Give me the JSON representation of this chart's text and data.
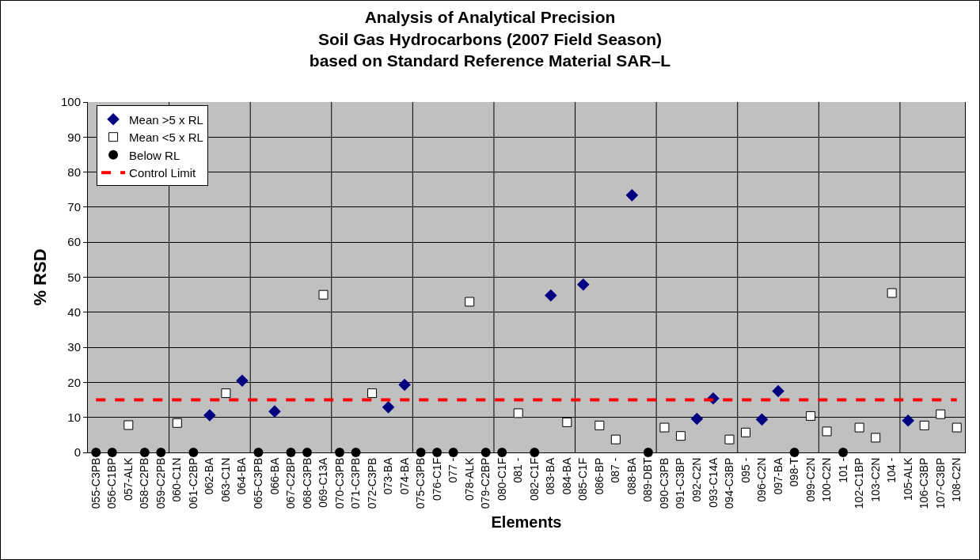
{
  "chart_data": {
    "type": "scatter",
    "title": "Analysis of Analytical Precision\nSoil Gas Hydrocarbons (2007 Field Season)\nbased on Standard Reference Material SAR–L",
    "xlabel": "Elements",
    "ylabel": "% RSD",
    "categories": [
      "055-C3PB",
      "056-C1BP",
      "057-ALK",
      "058-C2PB",
      "059-C2PB",
      "060-C1N",
      "061-C2BP",
      "062-BA",
      "063-C1N",
      "064-BA",
      "065-C3PB",
      "066-BA",
      "067-C2BP",
      "068-C3PB",
      "069-C13A",
      "070-C3PB",
      "071-C3PB",
      "072-C3PB",
      "073-BA",
      "074-BA",
      "075-C3PB",
      "076-C1F",
      "077 -",
      "078-ALK",
      "079-C2BP",
      "080-C1F",
      "081 -",
      "082-C1F",
      "083-BA",
      "084-BA",
      "085-C1F",
      "086-BP",
      "087 -",
      "088-BA",
      "089-DBT",
      "090-C3PB",
      "091-C3BP",
      "092-C2N",
      "093-C14A",
      "094-C3BP",
      "095 -",
      "096-C2N",
      "097-BA",
      "098-T",
      "099-C2N",
      "100-C2N",
      "101 -",
      "102-C1BP",
      "103-C2N",
      "104 -",
      "105-ALK",
      "106-C3BP",
      "107-C3BP",
      "108-C2N"
    ],
    "series": [
      {
        "name": "Mean >5 x RL",
        "color": "#000080",
        "marker": "diamond",
        "x": [
          "062-BA",
          "064-BA",
          "066-BA",
          "073-BA",
          "074-BA",
          "083-BA",
          "085-C1F",
          "088-BA",
          "092-C2N",
          "093-C14A",
          "096-C2N",
          "097-BA",
          "105-ALK"
        ],
        "values": [
          10.6,
          20.5,
          11.7,
          12.9,
          19.3,
          44.8,
          47.9,
          73.4,
          9.6,
          15.4,
          9.4,
          17.5,
          9.1
        ]
      },
      {
        "name": "Mean <5 x RL",
        "color": "#ffffff",
        "marker": "square",
        "x": [
          "057-ALK",
          "060-C1N",
          "063-C1N",
          "069-C13A",
          "072-C3PB",
          "078-ALK",
          "081 -",
          "084-BA",
          "086-BP",
          "087 -",
          "090-C3PB",
          "091-C3BP",
          "094-C3BP",
          "095 -",
          "099-C2N",
          "100-C2N",
          "102-C1BP",
          "103-C2N",
          "104 -",
          "106-C3BP",
          "107-C3BP",
          "108-C2N"
        ],
        "values": [
          7.8,
          8.4,
          16.9,
          45,
          16.9,
          43,
          11.2,
          8.6,
          7.7,
          3.7,
          7.1,
          4.7,
          3.7,
          5.7,
          10.4,
          6.0,
          7.1,
          4.2,
          45.5,
          7.7,
          10.9,
          7.1
        ]
      },
      {
        "name": "Below RL",
        "color": "#000000",
        "marker": "circle",
        "x": [
          "055-C3PB",
          "056-C1BP",
          "058-C2PB",
          "059-C2PB",
          "061-C2BP",
          "065-C3PB",
          "067-C2BP",
          "068-C3PB",
          "070-C3PB",
          "071-C3PB",
          "075-C3PB",
          "076-C1F",
          "077 -",
          "079-C2BP",
          "080-C1F",
          "082-C1F",
          "089-DBT",
          "098-T",
          "101 -"
        ],
        "values": [
          0,
          0,
          0,
          0,
          0,
          0,
          0,
          0,
          0,
          0,
          0,
          0,
          0,
          0,
          0,
          0,
          0,
          0,
          0
        ]
      }
    ],
    "ref_lines": [
      {
        "axis": "y",
        "value": 15,
        "label": "Control Limit",
        "color": "#ff0000",
        "line_style": "dashed"
      }
    ],
    "ylim": [
      0,
      100
    ],
    "yticks": [
      0,
      10,
      20,
      30,
      40,
      50,
      60,
      70,
      80,
      90,
      100
    ],
    "grid": true,
    "legend": "top left"
  }
}
